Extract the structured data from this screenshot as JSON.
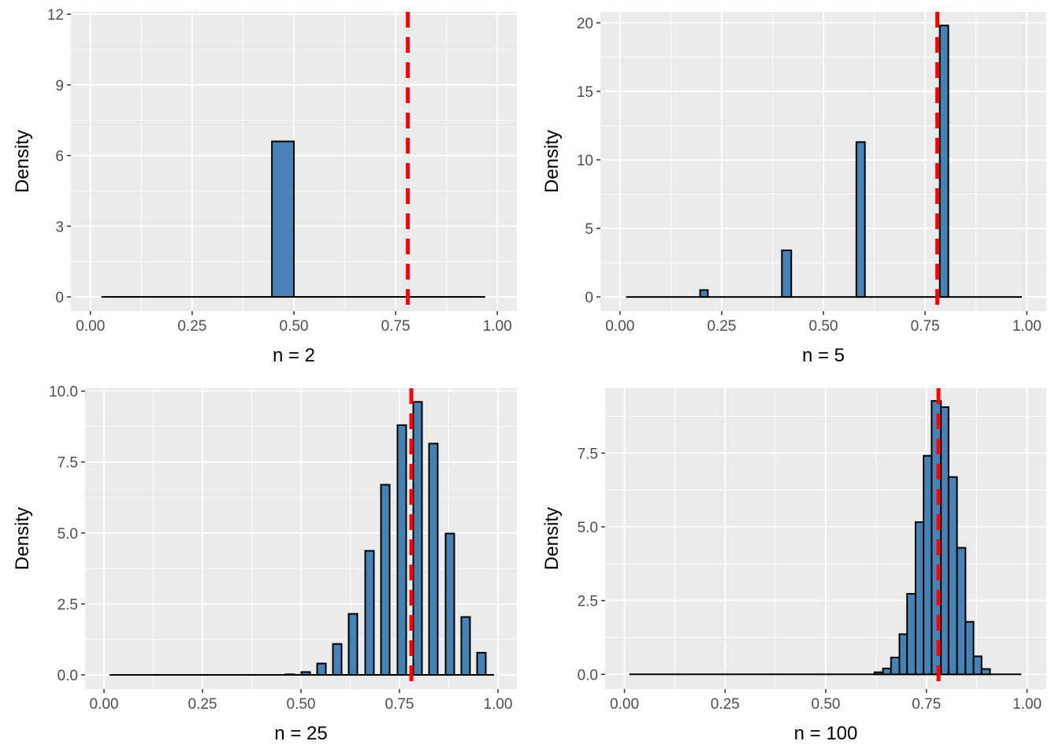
{
  "chart_data": [
    {
      "type": "bar",
      "title": "",
      "xlabel": "n = 2",
      "ylabel": "Density",
      "xlim": [
        -0.048,
        1.048
      ],
      "ylim": [
        -0.6,
        12.1
      ],
      "xticks": [
        0,
        0.25,
        0.5,
        0.75,
        1
      ],
      "xtick_labels": [
        "0.00",
        "0.25",
        "0.50",
        "0.75",
        "1.00"
      ],
      "yticks": [
        0,
        3,
        6,
        9,
        12
      ],
      "ytick_labels": [
        "0",
        "3",
        "6",
        "9",
        "12"
      ],
      "baseline_range": [
        0.027,
        0.97
      ],
      "bars": [
        [
          0.446,
          0.5,
          6.6
        ]
      ],
      "reference_line": 0.78
    },
    {
      "type": "bar",
      "title": "",
      "xlabel": "n = 5",
      "ylabel": "Density",
      "xlim": [
        -0.048,
        1.048
      ],
      "ylim": [
        -1.03,
        20.8
      ],
      "xticks": [
        0,
        0.25,
        0.5,
        0.75,
        1
      ],
      "xtick_labels": [
        "0.00",
        "0.25",
        "0.50",
        "0.75",
        "1.00"
      ],
      "yticks": [
        0,
        5,
        10,
        15,
        20
      ],
      "ytick_labels": [
        "0",
        "5",
        "10",
        "15",
        "20"
      ],
      "baseline_range": [
        0.015,
        0.988
      ],
      "bars": [
        [
          0.197,
          0.216,
          0.5
        ],
        [
          0.398,
          0.421,
          3.4
        ],
        [
          0.581,
          0.602,
          11.3
        ],
        [
          0.786,
          0.807,
          19.8
        ]
      ],
      "reference_line": 0.78
    },
    {
      "type": "bar",
      "title": "",
      "xlabel": "n = 25",
      "ylabel": "Density",
      "xlim": [
        -0.048,
        1.048
      ],
      "ylim": [
        -0.5,
        10.1
      ],
      "xticks": [
        0,
        0.25,
        0.5,
        0.75,
        1
      ],
      "xtick_labels": [
        "0.00",
        "0.25",
        "0.50",
        "0.75",
        "1.00"
      ],
      "yticks": [
        0,
        2.5,
        5,
        7.5,
        10
      ],
      "ytick_labels": [
        "0.0",
        "2.5",
        "5.0",
        "7.5",
        "10.0"
      ],
      "baseline_range": [
        0.014,
        0.99
      ],
      "bars": [
        [
          0.461,
          0.483,
          0.02
        ],
        [
          0.501,
          0.523,
          0.1
        ],
        [
          0.541,
          0.563,
          0.4
        ],
        [
          0.581,
          0.603,
          1.09
        ],
        [
          0.621,
          0.643,
          2.15
        ],
        [
          0.663,
          0.685,
          4.37
        ],
        [
          0.703,
          0.725,
          6.7
        ],
        [
          0.745,
          0.767,
          8.8
        ],
        [
          0.785,
          0.807,
          9.62
        ],
        [
          0.825,
          0.847,
          8.15
        ],
        [
          0.867,
          0.889,
          4.98
        ],
        [
          0.907,
          0.929,
          2.04
        ],
        [
          0.947,
          0.969,
          0.78
        ]
      ],
      "reference_line": 0.78
    },
    {
      "type": "bar",
      "title": "",
      "xlabel": "n = 100",
      "ylabel": "Density",
      "xlim": [
        -0.048,
        1.048
      ],
      "ylim": [
        -0.5,
        9.7
      ],
      "xticks": [
        0,
        0.25,
        0.5,
        0.75,
        1
      ],
      "xtick_labels": [
        "0.00",
        "0.25",
        "0.50",
        "0.75",
        "1.00"
      ],
      "yticks": [
        0,
        2.5,
        5,
        7.5
      ],
      "ytick_labels": [
        "0.0",
        "2.5",
        "5.0",
        "7.5"
      ],
      "baseline_range": [
        0.012,
        0.986
      ],
      "bars": [
        [
          0.621,
          0.642,
          0.07
        ],
        [
          0.642,
          0.662,
          0.2
        ],
        [
          0.662,
          0.683,
          0.57
        ],
        [
          0.683,
          0.702,
          1.36
        ],
        [
          0.702,
          0.723,
          2.73
        ],
        [
          0.723,
          0.743,
          5.16
        ],
        [
          0.743,
          0.763,
          7.41
        ],
        [
          0.763,
          0.786,
          9.27
        ],
        [
          0.786,
          0.805,
          9.06
        ],
        [
          0.805,
          0.826,
          6.69
        ],
        [
          0.826,
          0.847,
          4.29
        ],
        [
          0.847,
          0.867,
          1.78
        ],
        [
          0.867,
          0.887,
          0.61
        ],
        [
          0.887,
          0.908,
          0.18
        ]
      ],
      "reference_line": 0.78
    }
  ],
  "colors": {
    "panel_bg": "#ebebeb",
    "grid": "#ffffff",
    "bar_fill": "#4682b4",
    "bar_stroke": "#000000",
    "ref_line": "#ff0000"
  }
}
